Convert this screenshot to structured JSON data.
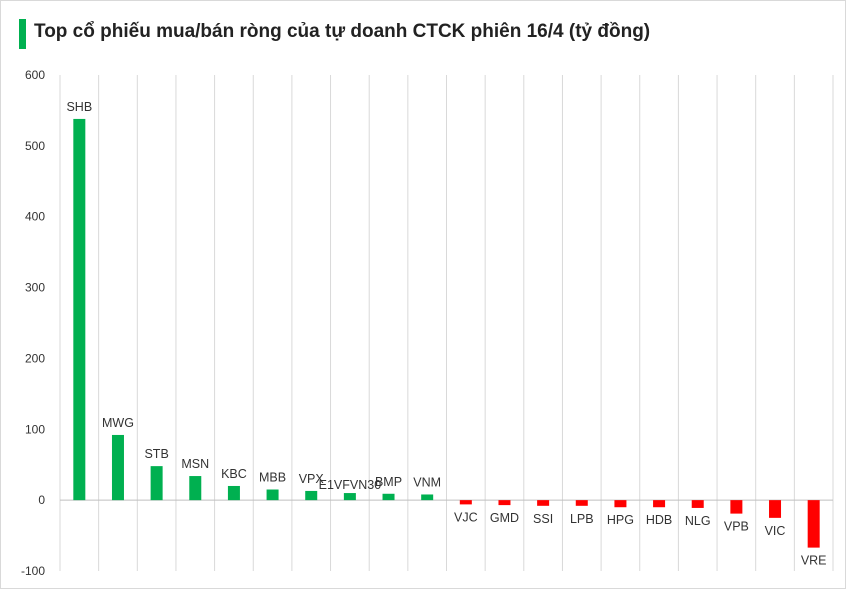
{
  "title": "Top cổ phiếu mua/bán ròng của tự doanh CTCK phiên 16/4 (tỷ đồng)",
  "colors": {
    "positive": "#00b050",
    "negative": "#ff0000",
    "accent_bar": "#00b050",
    "grid": "#d9d9d9",
    "axis": "#bfbfbf"
  },
  "chart_data": {
    "type": "bar",
    "title": "Top cổ phiếu mua/bán ròng của tự doanh CTCK phiên 16/4 (tỷ đồng)",
    "xlabel": "",
    "ylabel": "",
    "ylim": [
      -100,
      600
    ],
    "yticks": [
      "600",
      "500",
      "400",
      "300",
      "200",
      "100",
      "0",
      "-100"
    ],
    "grid": "vertical category lines",
    "legend": "none",
    "categories": [
      "SHB",
      "MWG",
      "STB",
      "MSN",
      "KBC",
      "MBB",
      "VPX",
      "E1VFVN30",
      "BMP",
      "VNM",
      "VJC",
      "GMD",
      "SSI",
      "LPB",
      "HPG",
      "HDB",
      "NLG",
      "VPB",
      "VIC",
      "VRE"
    ],
    "values": [
      538,
      92,
      48,
      34,
      20,
      15,
      13,
      10,
      9,
      8,
      -6,
      -7,
      -8,
      -8,
      -10,
      -10,
      -11,
      -19,
      -25,
      -67
    ]
  }
}
